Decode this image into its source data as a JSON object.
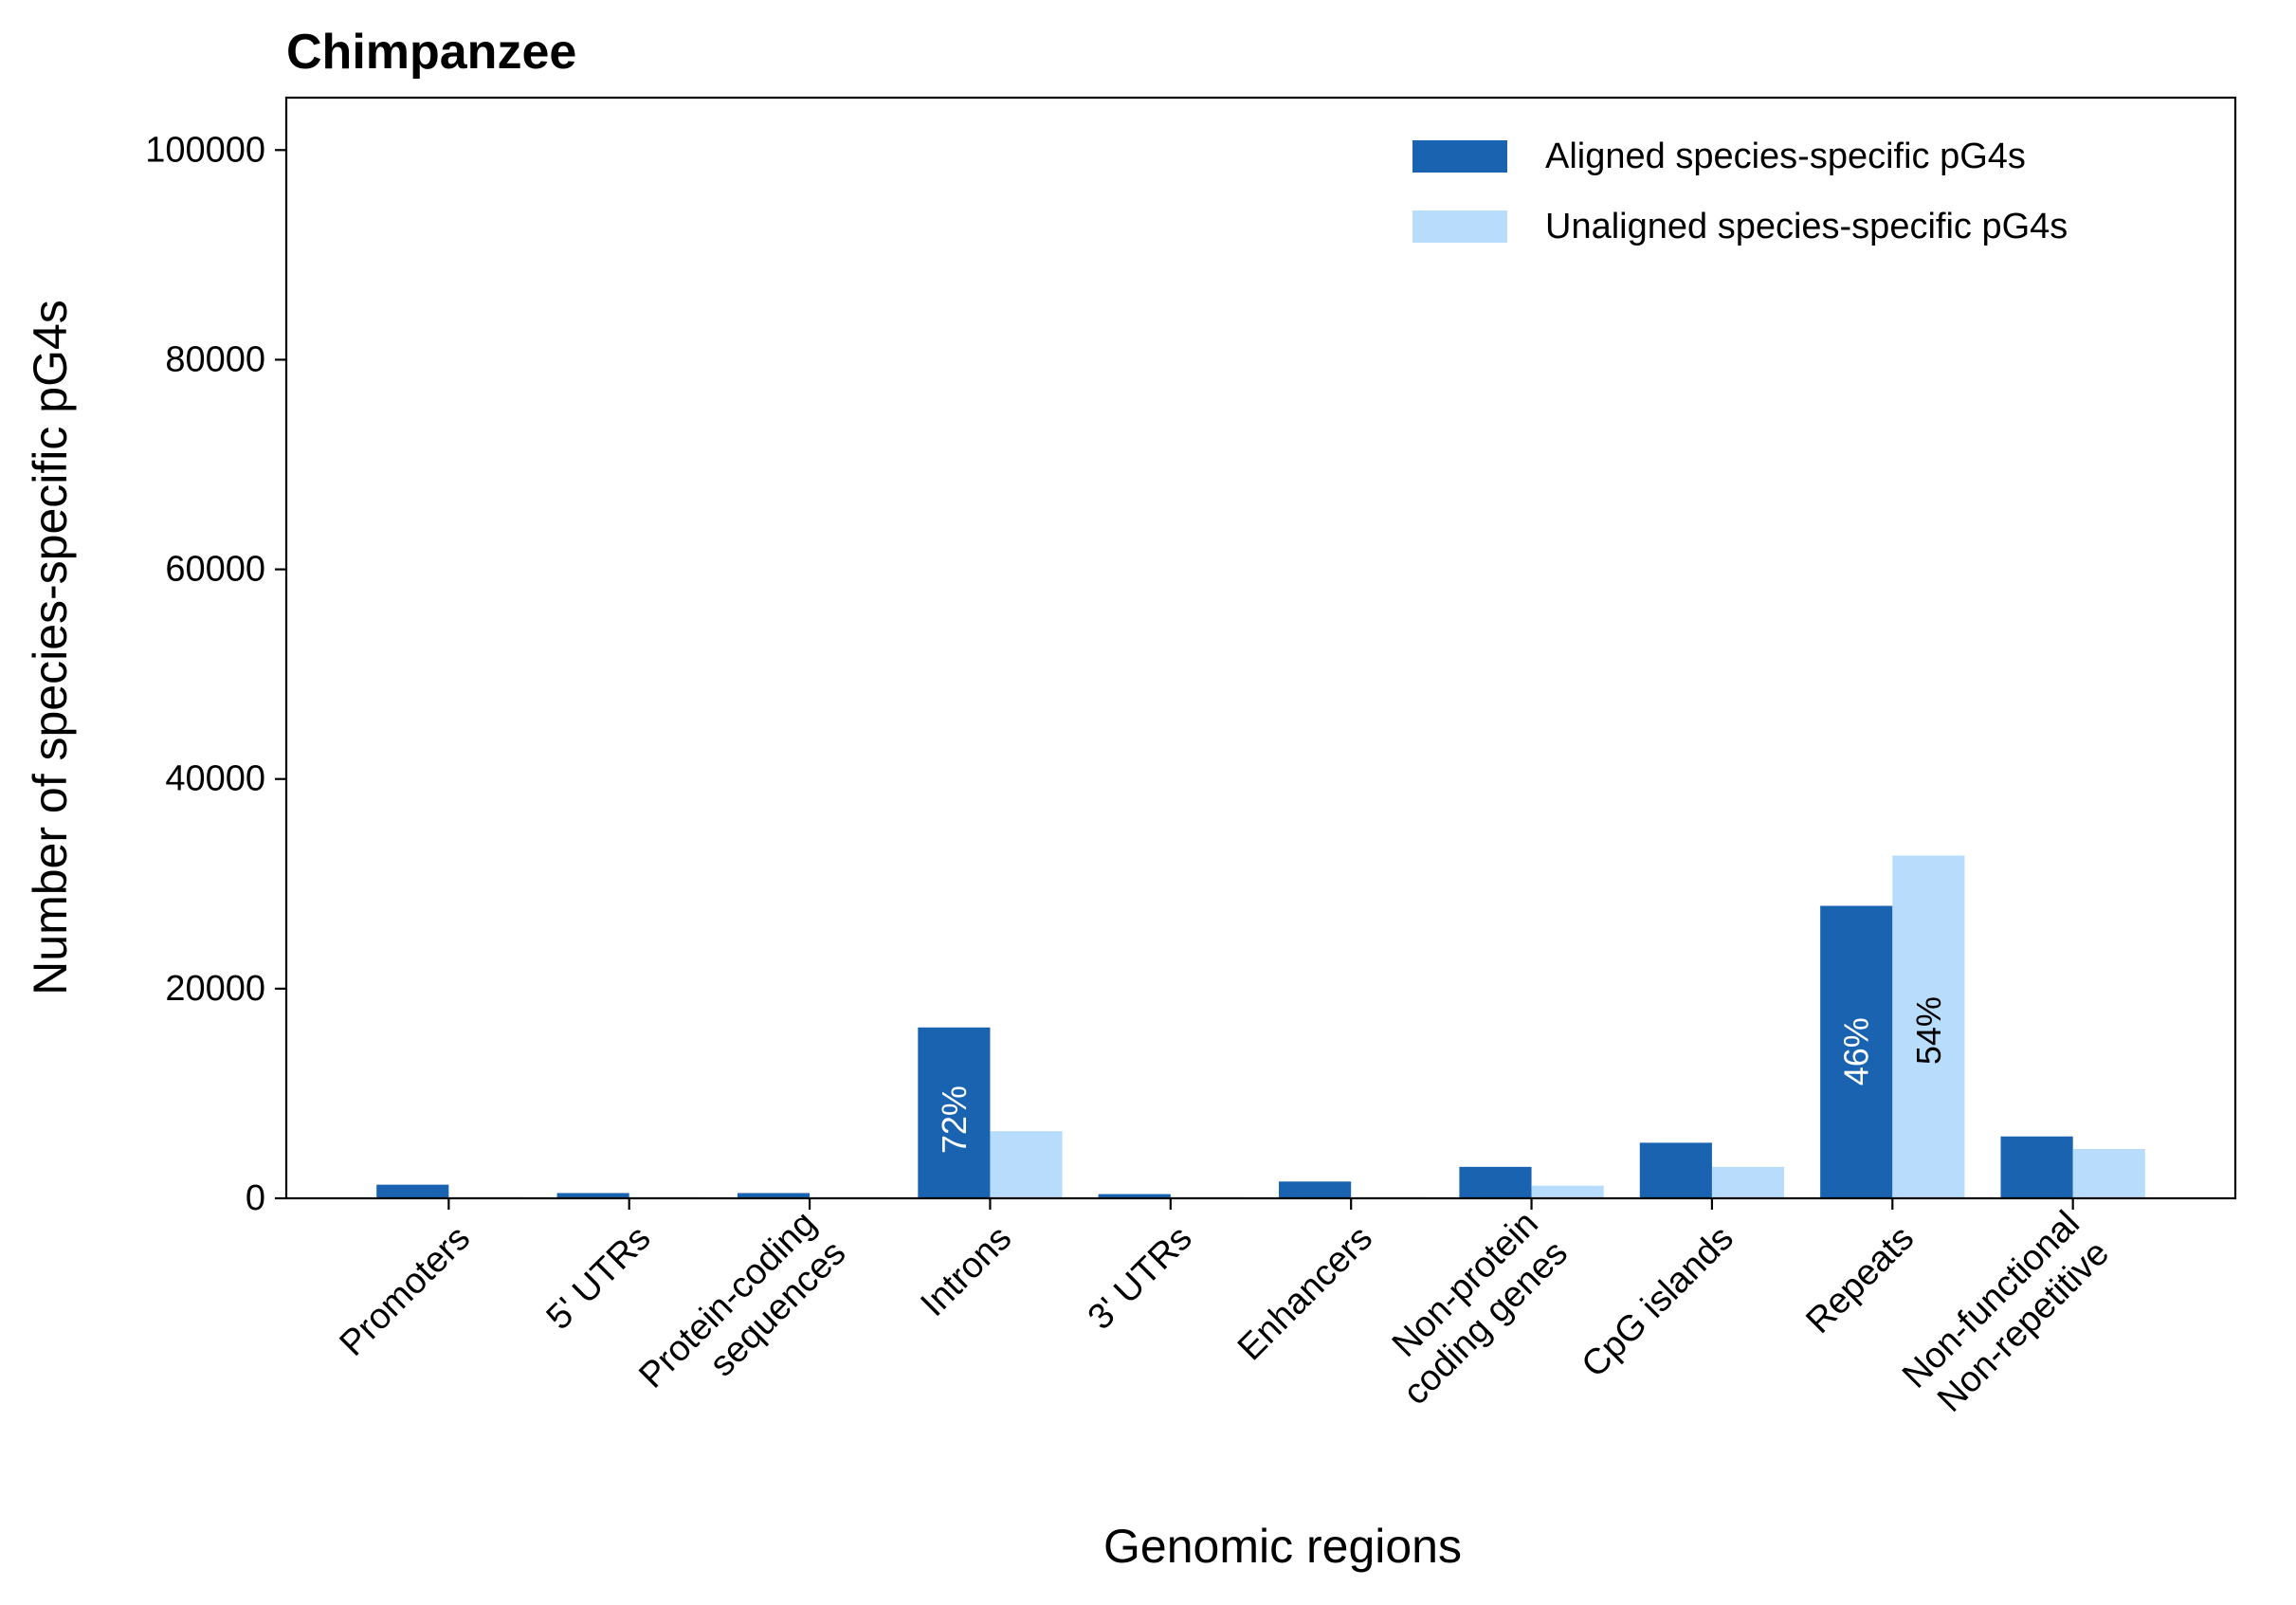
{
  "chart_data": {
    "type": "bar",
    "title": "Chimpanzee",
    "xlabel": "Genomic regions",
    "ylabel": "Number of species-specific pG4s",
    "ylim": [
      0,
      105000
    ],
    "yticks": [
      0,
      20000,
      40000,
      60000,
      80000,
      100000
    ],
    "categories": [
      [
        "Promoters"
      ],
      [
        "5' UTRs"
      ],
      [
        "Protein-coding",
        "sequences"
      ],
      [
        "Introns"
      ],
      [
        "3' UTRs"
      ],
      [
        "Enhancers"
      ],
      [
        "Non-protein",
        "coding genes"
      ],
      [
        "CpG islands"
      ],
      [
        "Repeats"
      ],
      [
        "Non-functional",
        "Non-repetitive"
      ]
    ],
    "series": [
      {
        "name": "Aligned species-specific pG4s",
        "color": "#1a63b0",
        "values": [
          1300,
          500,
          500,
          16300,
          400,
          1600,
          3000,
          5300,
          27900,
          5900
        ]
      },
      {
        "name": "Unaligned species-specific pG4s",
        "color": "#b8dcfb",
        "values": [
          100,
          100,
          100,
          6400,
          100,
          100,
          1200,
          3000,
          32700,
          4700
        ]
      }
    ],
    "annotations": [
      {
        "text": "72%",
        "category": 3,
        "series": 0,
        "y": 7500,
        "color": "#ffffff"
      },
      {
        "text": "46%",
        "category": 8,
        "series": 0,
        "y": 14000,
        "color": "#ffffff"
      },
      {
        "text": "54%",
        "category": 8,
        "series": 1,
        "y": 16000,
        "color": "#000000"
      }
    ],
    "legend_position": "top-right",
    "grid": false
  }
}
